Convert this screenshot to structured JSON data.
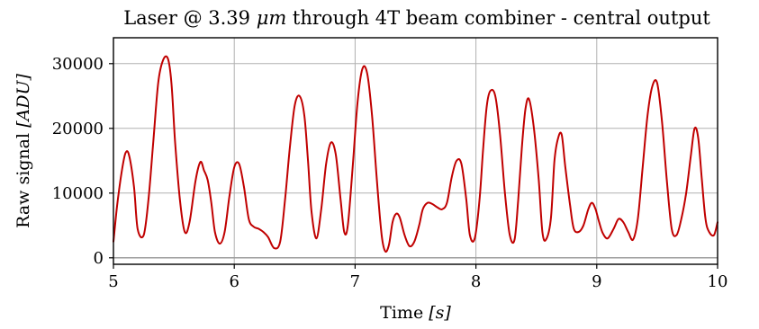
{
  "chart_data": {
    "type": "line",
    "title": "Laser @ 3.39 μm through 4T beam combiner - central output",
    "title_parts": {
      "prefix": "Laser @ 3.39 ",
      "unit": "μm",
      "suffix": " through 4T beam combiner - central output"
    },
    "xlabel": "Time [s]",
    "xlabel_parts": {
      "prefix": "Time ",
      "unit": "[s]"
    },
    "ylabel": "Raw signal [ADU]",
    "ylabel_parts": {
      "prefix": "Raw signal ",
      "unit": "[ADU]"
    },
    "xlim": [
      5,
      10
    ],
    "ylim": [
      -1000,
      34000
    ],
    "xticks": [
      5,
      6,
      7,
      8,
      9,
      10
    ],
    "xtick_labels": [
      "5",
      "6",
      "7",
      "8",
      "9",
      "10"
    ],
    "yticks": [
      0,
      10000,
      20000,
      30000
    ],
    "ytick_labels": [
      "0",
      "10000",
      "20000",
      "30000"
    ],
    "grid": true,
    "zero_line": true,
    "colors": {
      "series": "#c00000",
      "grid": "#b0b0b0",
      "zero_line": "#999999"
    },
    "series": [
      {
        "color": "#c00000",
        "x": [
          5.0,
          5.03,
          5.07,
          5.1,
          5.13,
          5.17,
          5.2,
          5.25,
          5.29,
          5.33,
          5.37,
          5.41,
          5.45,
          5.48,
          5.51,
          5.55,
          5.59,
          5.63,
          5.68,
          5.72,
          5.75,
          5.78,
          5.81,
          5.84,
          5.88,
          5.92,
          5.96,
          6.0,
          6.04,
          6.08,
          6.12,
          6.16,
          6.2,
          6.24,
          6.28,
          6.33,
          6.38,
          6.42,
          6.46,
          6.5,
          6.54,
          6.58,
          6.61,
          6.64,
          6.68,
          6.72,
          6.76,
          6.8,
          6.84,
          6.88,
          6.91,
          6.94,
          6.98,
          7.02,
          7.06,
          7.1,
          7.14,
          7.18,
          7.22,
          7.25,
          7.28,
          7.31,
          7.34,
          7.37,
          7.41,
          7.45,
          7.49,
          7.53,
          7.56,
          7.6,
          7.64,
          7.68,
          7.72,
          7.76,
          7.8,
          7.84,
          7.88,
          7.92,
          7.95,
          7.99,
          8.03,
          8.06,
          8.09,
          8.12,
          8.16,
          8.2,
          8.24,
          8.28,
          8.32,
          8.35,
          8.38,
          8.41,
          8.44,
          8.48,
          8.52,
          8.55,
          8.58,
          8.62,
          8.65,
          8.68,
          8.71,
          8.74,
          8.78,
          8.81,
          8.85,
          8.89,
          8.93,
          8.96,
          8.99,
          9.02,
          9.05,
          9.09,
          9.14,
          9.18,
          9.22,
          9.26,
          9.3,
          9.34,
          9.38,
          9.42,
          9.46,
          9.5,
          9.54,
          9.58,
          9.62,
          9.66,
          9.7,
          9.74,
          9.78,
          9.81,
          9.84,
          9.87,
          9.9,
          9.93,
          9.97,
          10.0
        ],
        "y": [
          2500,
          8000,
          13500,
          16200,
          15800,
          11000,
          4500,
          3500,
          9000,
          18000,
          27000,
          30500,
          30800,
          27000,
          18000,
          9000,
          4000,
          5500,
          12000,
          14800,
          13500,
          12000,
          8500,
          4000,
          2200,
          4000,
          9500,
          14000,
          14500,
          11000,
          6000,
          4800,
          4500,
          4000,
          3200,
          1500,
          2500,
          9000,
          17000,
          23500,
          25000,
          22000,
          15000,
          7000,
          3000,
          7500,
          14500,
          17800,
          16000,
          9000,
          4000,
          5000,
          14000,
          24000,
          29200,
          28500,
          22000,
          12000,
          3500,
          1000,
          2000,
          5500,
          6800,
          6200,
          3500,
          1800,
          2500,
          5000,
          7500,
          8500,
          8300,
          7800,
          7500,
          8500,
          12500,
          15000,
          14500,
          9000,
          3500,
          3000,
          9000,
          17000,
          23500,
          25800,
          25000,
          19000,
          10000,
          3500,
          2800,
          9000,
          17000,
          23000,
          24500,
          20000,
          12000,
          4000,
          2800,
          6000,
          15000,
          18500,
          19000,
          14000,
          8000,
          4500,
          4000,
          5000,
          7500,
          8500,
          7500,
          5500,
          3800,
          3000,
          4500,
          6000,
          5500,
          4000,
          2800,
          6000,
          14000,
          22000,
          26500,
          27000,
          21000,
          12000,
          4500,
          3500,
          6000,
          10000,
          16000,
          20000,
          18500,
          12000,
          6000,
          4000,
          3500,
          5500
        ]
      }
    ]
  }
}
